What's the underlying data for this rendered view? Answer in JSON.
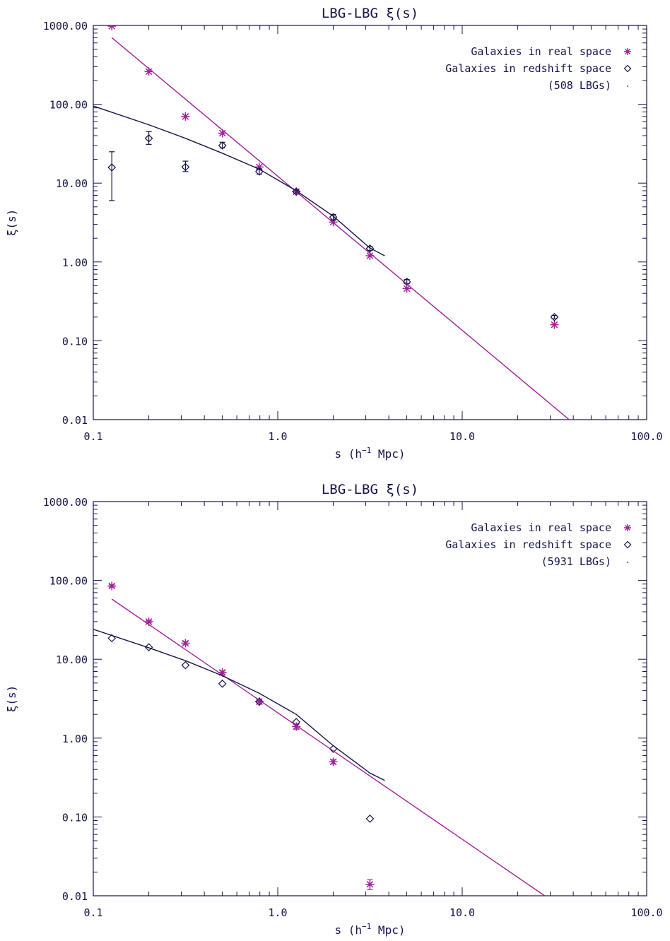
{
  "colors": {
    "axis": "#14144a",
    "real": "#a0229b",
    "redshift": "#14144a"
  },
  "chart_data": [
    {
      "type": "scatter",
      "title": "LBG-LBG ξ(s)",
      "xlabel": "s (h^-1 Mpc)",
      "xlabel_parts": {
        "pre": "s (h",
        "sup": "−1",
        "post": " Mpc)"
      },
      "ylabel": "ξ(s)",
      "xscale": "log",
      "yscale": "log",
      "xlim": [
        0.1,
        100
      ],
      "ylim": [
        0.01,
        1000
      ],
      "xticks": [
        0.1,
        1,
        10,
        100
      ],
      "xtick_labels": [
        "0.1",
        "1.0",
        "10.0",
        "100.0"
      ],
      "yticks": [
        0.01,
        0.1,
        1,
        10,
        100,
        1000
      ],
      "ytick_labels": [
        "0.01",
        "0.10",
        "1.00",
        "10.00",
        "100.00",
        "1000.00"
      ],
      "legend": [
        "Galaxies in real space",
        "Galaxies in redshift space",
        "(508 LBGs)"
      ],
      "legend_position": "top-right",
      "series": [
        {
          "name": "Galaxies in real space",
          "marker": "asterisk",
          "x": [
            0.126,
            0.2,
            0.316,
            0.501,
            0.794,
            1.26,
            2.0,
            3.16,
            5.01,
            31.6
          ],
          "y": [
            980,
            260,
            70,
            43,
            16,
            7.8,
            3.2,
            1.2,
            0.46,
            0.16
          ]
        },
        {
          "name": "Galaxies in redshift space",
          "marker": "diamond",
          "x": [
            0.126,
            0.2,
            0.316,
            0.501,
            0.794,
            1.26,
            2.0,
            3.16,
            5.01,
            31.6
          ],
          "y": [
            15.8,
            37,
            16,
            30,
            14,
            7.8,
            3.7,
            1.48,
            0.56,
            0.2
          ],
          "yerr_low": [
            6,
            31,
            14,
            28,
            13,
            7.5,
            3.4,
            1.4,
            0.53,
            0.19
          ],
          "yerr_high": [
            25,
            45,
            19,
            33,
            15.2,
            8.2,
            4.0,
            1.56,
            0.6,
            0.21
          ]
        },
        {
          "name": "real-space power-law fit",
          "type": "line",
          "x": [
            0.126,
            38
          ],
          "y": [
            700,
            0.01
          ]
        },
        {
          "name": "redshift-space model",
          "type": "line",
          "x": [
            0.1,
            0.2,
            0.316,
            0.5,
            0.794,
            1.26,
            2.0,
            3.16,
            3.8
          ],
          "y": [
            95,
            55,
            37,
            24,
            15,
            8.0,
            3.8,
            1.5,
            1.2
          ]
        }
      ]
    },
    {
      "type": "scatter",
      "title": "LBG-LBG ξ(s)",
      "xlabel": "s (h^-1 Mpc)",
      "xlabel_parts": {
        "pre": "s (h",
        "sup": "−1",
        "post": " Mpc)"
      },
      "ylabel": "ξ(s)",
      "xscale": "log",
      "yscale": "log",
      "xlim": [
        0.1,
        100
      ],
      "ylim": [
        0.01,
        1000
      ],
      "xticks": [
        0.1,
        1,
        10,
        100
      ],
      "xtick_labels": [
        "0.1",
        "1.0",
        "10.0",
        "100.0"
      ],
      "yticks": [
        0.01,
        0.1,
        1,
        10,
        100,
        1000
      ],
      "ytick_labels": [
        "0.01",
        "0.10",
        "1.00",
        "10.00",
        "100.00",
        "1000.00"
      ],
      "legend": [
        "Galaxies in real space",
        "Galaxies in redshift space",
        "(5931 LBGs)"
      ],
      "legend_position": "top-right",
      "series": [
        {
          "name": "Galaxies in real space",
          "marker": "asterisk",
          "x": [
            0.126,
            0.2,
            0.316,
            0.501,
            0.794,
            1.26,
            2.0,
            3.16
          ],
          "y": [
            85,
            30,
            16,
            6.8,
            2.9,
            1.4,
            0.5,
            0.014
          ],
          "yerr_low": [
            82,
            29,
            15.3,
            6.5,
            2.7,
            1.3,
            0.47,
            0.012
          ],
          "yerr_high": [
            88,
            31,
            16.7,
            7.1,
            3.1,
            1.5,
            0.53,
            0.016
          ]
        },
        {
          "name": "Galaxies in redshift space",
          "marker": "diamond",
          "x": [
            0.126,
            0.2,
            0.316,
            0.501,
            0.794,
            1.26,
            2.0,
            3.16
          ],
          "y": [
            18.5,
            14.2,
            8.4,
            4.9,
            2.9,
            1.6,
            0.73,
            0.095
          ]
        },
        {
          "name": "real-space power-law fit",
          "type": "line",
          "x": [
            0.126,
            28
          ],
          "y": [
            58,
            0.01
          ]
        },
        {
          "name": "redshift-space model",
          "type": "line",
          "x": [
            0.1,
            0.2,
            0.316,
            0.5,
            0.794,
            1.26,
            2.0,
            3.16,
            3.8
          ],
          "y": [
            24,
            14,
            9.6,
            6.2,
            3.7,
            2.0,
            0.8,
            0.36,
            0.29
          ]
        }
      ]
    }
  ]
}
